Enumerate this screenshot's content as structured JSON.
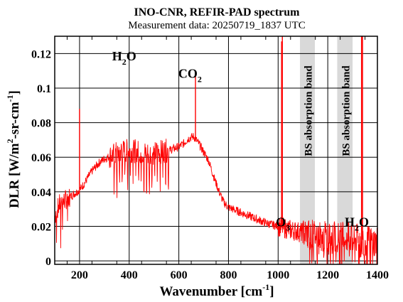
{
  "chart_data": {
    "type": "line",
    "title": "INO-CNR, REFIR-PAD spectrum",
    "subtitle": "Measurement data: 20250719_1837 UTC",
    "xlabel": "Wavenumber [cm",
    "xlabel_sup": "-1",
    "xlabel_end": "]",
    "ylabel": "DLR [W/m",
    "ylabel_sup1": "2",
    "ylabel_mid": "-sr-cm",
    "ylabel_sup2": "-1",
    "ylabel_end": "]",
    "xlim": [
      100,
      1400
    ],
    "ylim": [
      -0.002,
      0.13
    ],
    "x_ticks": [
      "200",
      "400",
      "600",
      "800",
      "1000",
      "1200",
      "1400"
    ],
    "y_ticks": [
      "0",
      "0.02",
      "0.04",
      "0.06",
      "0.08",
      "0.1",
      "0.12"
    ],
    "grid": true,
    "series": [
      {
        "color": "#ff0000",
        "x": [
          100,
          120,
          140,
          160,
          180,
          200,
          220,
          250,
          280,
          300,
          330,
          360,
          400,
          440,
          480,
          520,
          560,
          600,
          620,
          640,
          660,
          680,
          700,
          720,
          740,
          760,
          780,
          800,
          850,
          900,
          950,
          1000,
          1050,
          1080,
          1100,
          1150,
          1200,
          1250,
          1300,
          1350,
          1400
        ],
        "values": [
          0.026,
          0.033,
          0.035,
          0.037,
          0.039,
          0.041,
          0.045,
          0.052,
          0.057,
          0.059,
          0.061,
          0.063,
          0.064,
          0.063,
          0.062,
          0.063,
          0.064,
          0.066,
          0.068,
          0.071,
          0.072,
          0.068,
          0.063,
          0.058,
          0.049,
          0.041,
          0.034,
          0.031,
          0.028,
          0.025,
          0.022,
          0.02,
          0.018,
          0.017,
          0.016,
          0.015,
          0.014,
          0.014,
          0.013,
          0.012,
          0.011
        ]
      }
    ],
    "spikes": [
      {
        "x": 200,
        "y": 0.088
      },
      {
        "x": 667,
        "y": 0.108
      },
      {
        "x": 1014,
        "y": 0.127
      },
      {
        "x": 1017,
        "y": 0.13
      },
      {
        "x": 1336,
        "y": 0.13
      },
      {
        "x": 1340,
        "y": 0.13
      }
    ],
    "bands": [
      {
        "x0": 1088,
        "x1": 1148,
        "label": "BS absorption band"
      },
      {
        "x0": 1238,
        "x1": 1300,
        "label": "BS absorption band"
      }
    ],
    "annotations": [
      {
        "x": 380,
        "y": 0.116,
        "base": "H",
        "sub": "2",
        "tail": "O"
      },
      {
        "x": 645,
        "y": 0.106,
        "base": "CO",
        "sub": "2",
        "tail": ""
      },
      {
        "x": 1020,
        "y": 0.02,
        "base": "O",
        "sub": "3",
        "tail": ""
      },
      {
        "x": 1317,
        "y": 0.02,
        "base": "H",
        "sub": "2",
        "tail": "O"
      }
    ]
  }
}
